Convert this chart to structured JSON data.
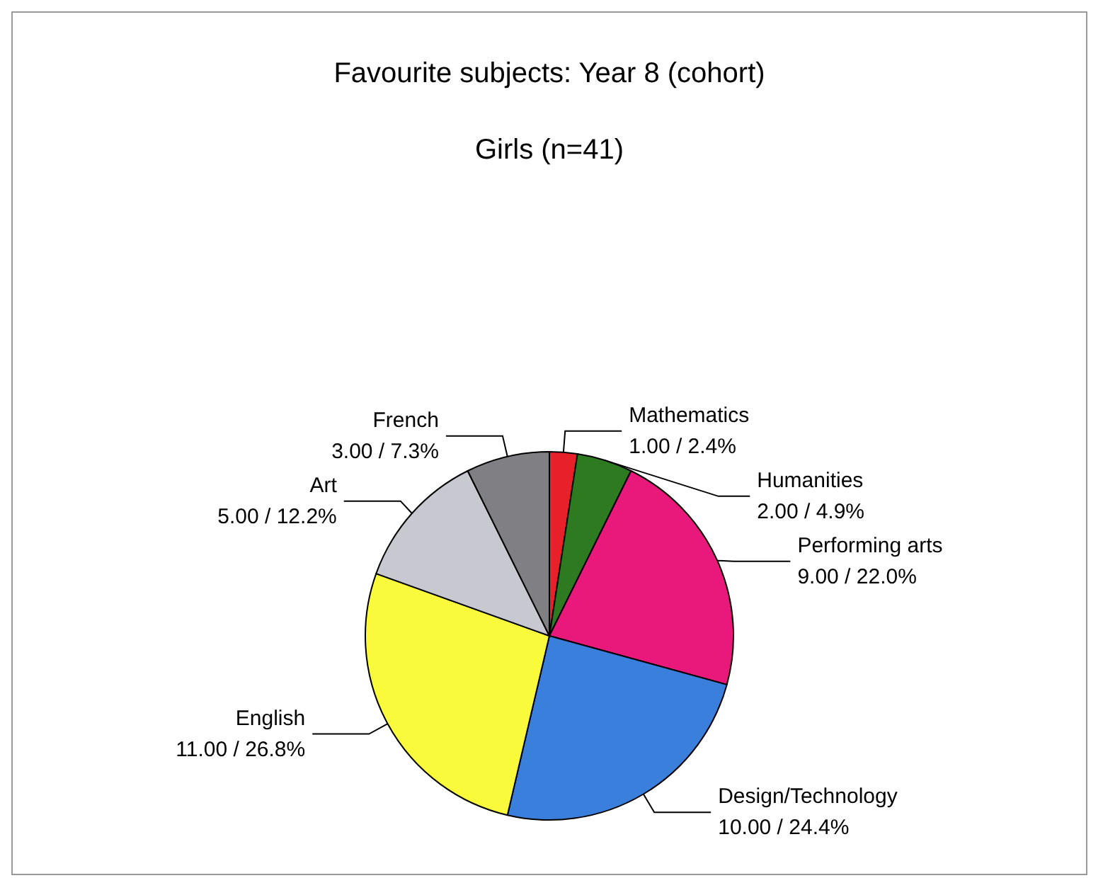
{
  "chart_data": {
    "type": "pie",
    "title": "Favourite subjects: Year 8 (cohort)",
    "subtitle": "Girls (n=41)",
    "categories": [
      "Mathematics",
      "Humanities",
      "Performing arts",
      "Design/Technology",
      "English",
      "Art",
      "French"
    ],
    "values": [
      1,
      2,
      9,
      10,
      11,
      5,
      3
    ],
    "colors": [
      "#e8202a",
      "#2e7a20",
      "#e8197a",
      "#3a7fdc",
      "#fafa3c",
      "#c8c8d0",
      "#7f7f84"
    ],
    "value_labels": [
      "1.00 / 2.4%",
      "2.00 / 4.9%",
      "9.00 / 22.0%",
      "10.00 / 24.4%",
      "11.00 / 26.8%",
      "5.00 / 12.2%",
      "3.00 / 7.3%"
    ]
  }
}
